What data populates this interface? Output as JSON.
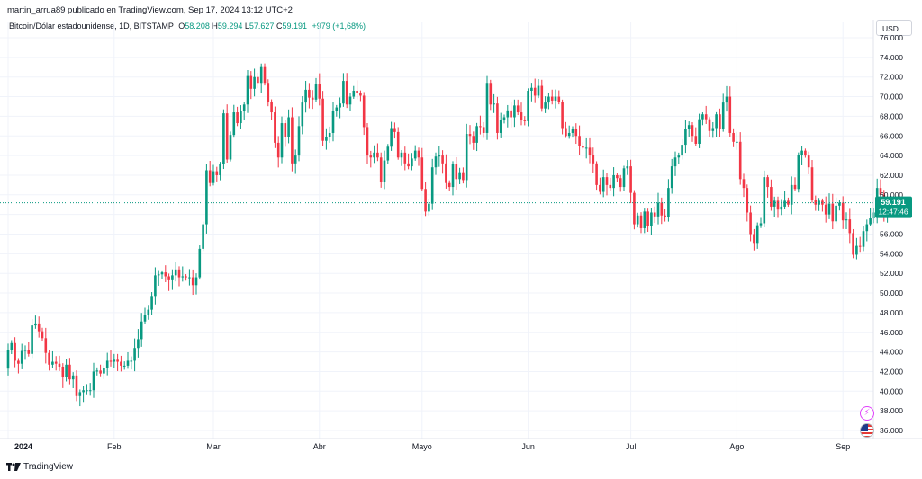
{
  "header": {
    "text": "martin_arrua89 publicado en TradingView.com, Sep 17, 2024 13:12 UTC+2"
  },
  "legend": {
    "symbol": "Bitcoin/Dólar estadounidense, 1D, BITSTAMP",
    "o_label": "O",
    "o": "58.208",
    "h_label": "H",
    "h": "59.294",
    "l_label": "L",
    "l": "57.627",
    "c_label": "C",
    "c": "59.191",
    "change": "+979 (+1,68%)"
  },
  "currency_button": "USD",
  "price_tag": {
    "price": "59.191",
    "countdown": "12:47:46"
  },
  "footer": {
    "brand": "TradingView"
  },
  "icons": {
    "flash": "flash-icon",
    "flag": "us-flag-icon",
    "logo": "tradingview-logo-icon"
  },
  "colors": {
    "up": "#089981",
    "down": "#f23645",
    "price_line": "#089981"
  },
  "chart_data": {
    "type": "candlestick",
    "title": "",
    "xlabel": "",
    "ylabel": "",
    "ylim": [
      34600,
      76400
    ],
    "y_ticks": [
      "36.000",
      "38.000",
      "40.000",
      "42.000",
      "44.000",
      "46.000",
      "48.000",
      "50.000",
      "52.000",
      "54.000",
      "56.000",
      "58.000",
      "60.000",
      "62.000",
      "64.000",
      "66.000",
      "68.000",
      "70.000",
      "72.000",
      "74.000",
      "76.000"
    ],
    "y_tick_values": [
      36000,
      38000,
      40000,
      42000,
      44000,
      46000,
      48000,
      50000,
      52000,
      54000,
      56000,
      58000,
      60000,
      62000,
      64000,
      66000,
      68000,
      70000,
      72000,
      74000,
      76000
    ],
    "x_ticks": [
      "2024",
      "Feb",
      "Mar",
      "Abr",
      "Mayo",
      "Jun",
      "Jul",
      "Ago",
      "Sep"
    ],
    "x_tick_days": [
      0,
      31,
      60,
      91,
      121,
      152,
      182,
      213,
      244
    ],
    "grid": true,
    "last_price": 59191,
    "closes": [
      44200,
      44900,
      43100,
      42800,
      44100,
      44200,
      43800,
      46700,
      46900,
      46100,
      45400,
      43900,
      42700,
      43000,
      42800,
      42500,
      41400,
      42700,
      41200,
      41600,
      39500,
      39900,
      40100,
      40100,
      40100,
      42000,
      42100,
      41800,
      42400,
      43100,
      43000,
      43200,
      43000,
      42600,
      42600,
      43100,
      43100,
      44400,
      45300,
      47100,
      47800,
      48300,
      49700,
      51800,
      51900,
      52100,
      51700,
      51300,
      51800,
      52400,
      51600,
      51700,
      51600,
      51600,
      50800,
      51600,
      54500,
      57000,
      62500,
      61200,
      62400,
      62000,
      63100,
      68300,
      63600,
      66100,
      68400,
      67300,
      68500,
      69200,
      72100,
      70800,
      72000,
      71400,
      73100,
      71400,
      69500,
      68400,
      65300,
      63800,
      67300,
      65900,
      67900,
      63200,
      64000,
      67000,
      69400,
      70700,
      69900,
      69700,
      71300,
      69800,
      65500,
      65900,
      66300,
      68500,
      68900,
      69300,
      71600,
      69200,
      70000,
      70600,
      70400,
      70100,
      66900,
      64000,
      63800,
      64300,
      63800,
      61300,
      63500,
      64900,
      66800,
      66400,
      63800,
      64300,
      63200,
      62900,
      63700,
      64500,
      63800,
      60600,
      58300,
      59100,
      62800,
      63900,
      64000,
      63200,
      61200,
      60800,
      63100,
      61600,
      62300,
      61500,
      66200,
      66000,
      65300,
      67000,
      66900,
      66300,
      71400,
      69200,
      69300,
      66300,
      67600,
      67900,
      68600,
      67900,
      69100,
      68400,
      67600,
      67500,
      70600,
      70900,
      70100,
      71100,
      68800,
      69400,
      70000,
      69600,
      70000,
      69500,
      66800,
      66000,
      66300,
      66700,
      66000,
      65000,
      64800,
      64800,
      64100,
      63200,
      61000,
      60300,
      61800,
      61000,
      60700,
      62000,
      61700,
      60800,
      62700,
      62900,
      60200,
      57000,
      57900,
      56600,
      58300,
      56800,
      58200,
      57800,
      59200,
      57900,
      57700,
      60700,
      62900,
      63800,
      64000,
      65100,
      66700,
      67100,
      66000,
      65200,
      67700,
      68200,
      67700,
      66500,
      66800,
      68200,
      66700,
      69400,
      70000,
      66300,
      65400,
      65400,
      61600,
      60700,
      58200,
      56000,
      55100,
      56900,
      57100,
      61800,
      60800,
      58800,
      59400,
      58500,
      58800,
      59400,
      59000,
      61000,
      60600,
      64100,
      64500,
      64000,
      62800,
      59500,
      59000,
      59400,
      59000,
      58000,
      59100,
      57300,
      58900,
      59200,
      57400,
      57500,
      56100,
      53900,
      54800,
      54700,
      56300,
      57000,
      57600,
      58200,
      60700,
      60000,
      58100,
      58200,
      59191
    ]
  }
}
